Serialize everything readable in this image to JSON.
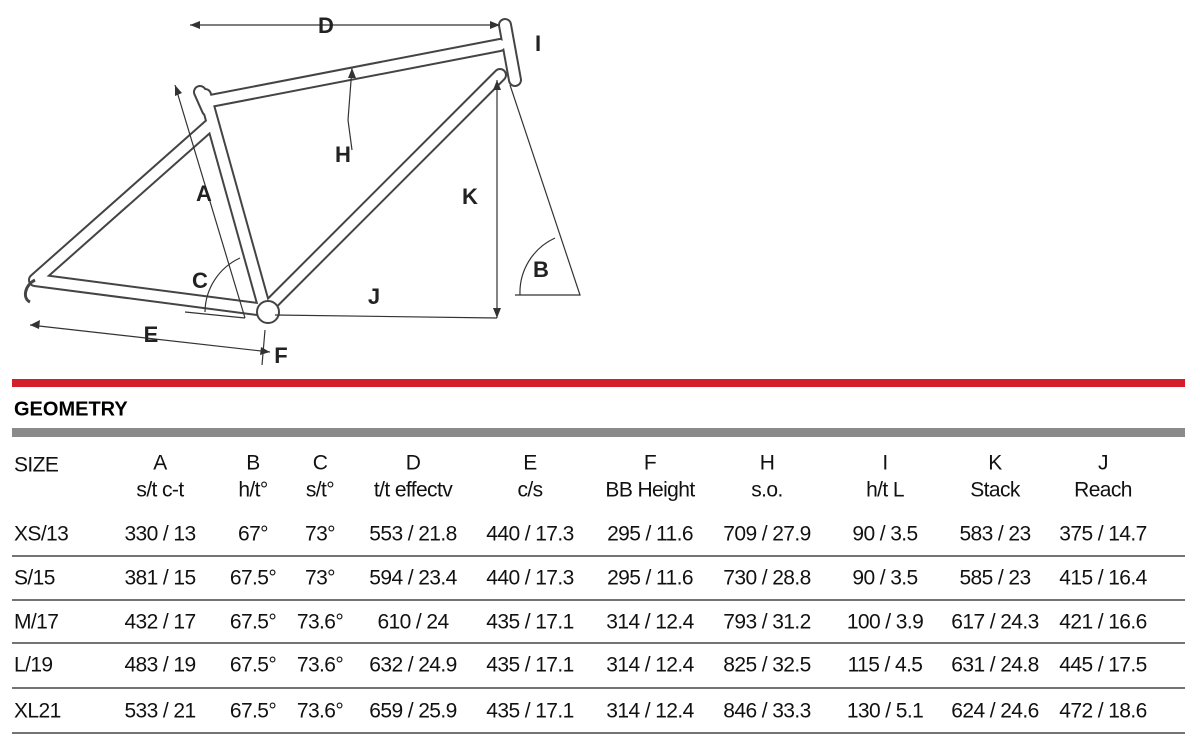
{
  "diagram": {
    "labels": [
      "D",
      "I",
      "H",
      "A",
      "K",
      "C",
      "B",
      "J",
      "E",
      "F"
    ]
  },
  "title": "GEOMETRY",
  "table": {
    "columns": [
      {
        "letter": "SIZE"
      },
      {
        "letter": "A",
        "name": "s/t c-t"
      },
      {
        "letter": "B",
        "name": "h/t°"
      },
      {
        "letter": "C",
        "name": "s/t°"
      },
      {
        "letter": "D",
        "name": "t/t effectv"
      },
      {
        "letter": "E",
        "name": "c/s"
      },
      {
        "letter": "F",
        "name": "BB Height"
      },
      {
        "letter": "H",
        "name": "s.o."
      },
      {
        "letter": "I",
        "name": "h/t L"
      },
      {
        "letter": "K",
        "name": "Stack"
      },
      {
        "letter": "J",
        "name": "Reach"
      }
    ],
    "rows": [
      [
        "XS/13",
        "330 / 13",
        "67°",
        "73°",
        "553 / 21.8",
        "440 / 17.3",
        "295 / 11.6",
        "709 / 27.9",
        "90 / 3.5",
        "583 / 23",
        "375 / 14.7"
      ],
      [
        "S/15",
        "381 / 15",
        "67.5°",
        "73°",
        "594 / 23.4",
        "440 / 17.3",
        "295 / 11.6",
        "730 / 28.8",
        "90 / 3.5",
        "585 / 23",
        "415 / 16.4"
      ],
      [
        "M/17",
        "432 / 17",
        "67.5°",
        "73.6°",
        "610 / 24",
        "435 / 17.1",
        "314 / 12.4",
        "793 / 31.2",
        "100 / 3.9",
        "617 / 24.3",
        "421 / 16.6"
      ],
      [
        "L/19",
        "483 / 19",
        "67.5°",
        "73.6°",
        "632 / 24.9",
        "435 / 17.1",
        "314 / 12.4",
        "825 / 32.5",
        "115 / 4.5",
        "631 / 24.8",
        "445 / 17.5"
      ],
      [
        "XL21",
        "533 / 21",
        "67.5°",
        "73.6°",
        "659 / 25.9",
        "435 / 17.1",
        "314 / 12.4",
        "846 / 33.3",
        "130 / 5.1",
        "624 / 24.6",
        "472 / 18.6"
      ]
    ]
  }
}
